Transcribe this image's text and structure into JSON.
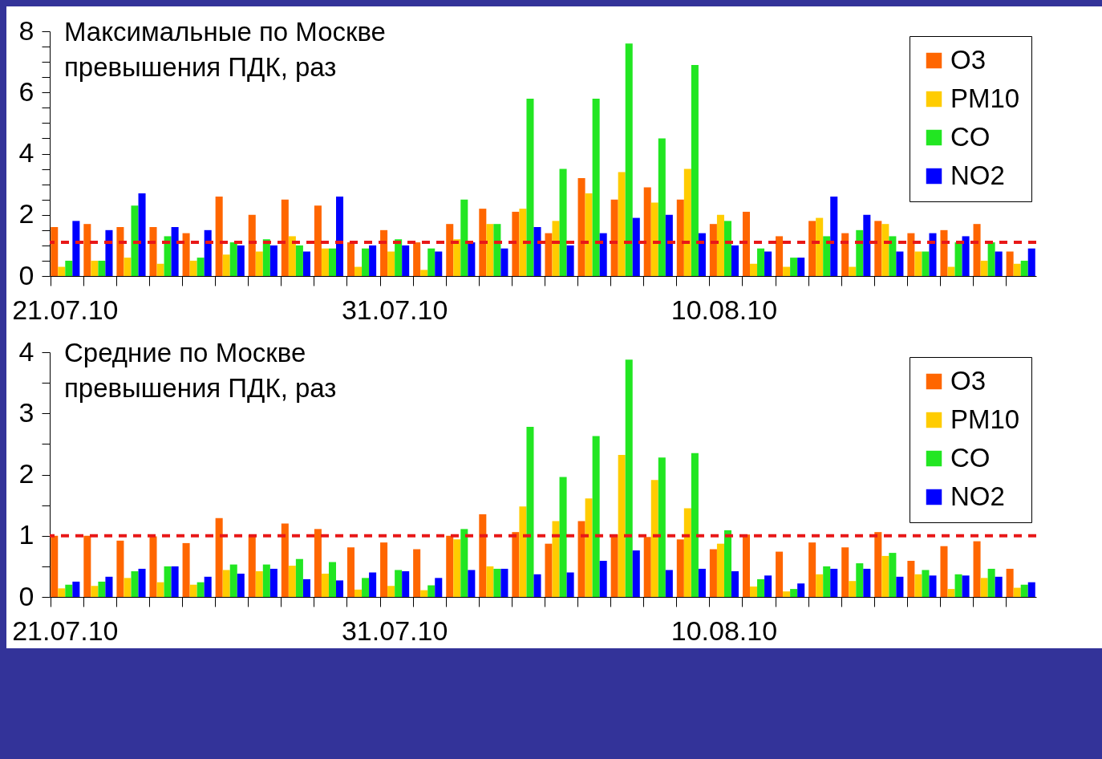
{
  "chart_data": [
    {
      "type": "bar",
      "title": "Максимальные по Москве\nпревышения ПДК, раз",
      "categories": [
        "21.07.10",
        null,
        null,
        null,
        null,
        null,
        null,
        null,
        null,
        null,
        "31.07.10",
        null,
        null,
        null,
        null,
        null,
        null,
        null,
        null,
        null,
        "10.08.10",
        null,
        null,
        null,
        null,
        null,
        null,
        null,
        null,
        null
      ],
      "series": [
        {
          "name": "O3",
          "color": "#ff6600",
          "values": [
            1.6,
            1.7,
            1.6,
            1.6,
            1.4,
            2.6,
            2.0,
            2.5,
            2.3,
            1.1,
            1.5,
            1.1,
            1.7,
            2.2,
            2.1,
            1.4,
            3.2,
            2.5,
            2.9,
            2.5,
            1.7,
            2.1,
            1.3,
            1.8,
            1.4,
            1.8,
            1.4,
            1.5,
            1.7,
            0.8
          ]
        },
        {
          "name": "PM10",
          "color": "#ffcc00",
          "values": [
            0.3,
            0.5,
            0.6,
            0.4,
            0.5,
            0.7,
            0.8,
            1.3,
            0.9,
            0.3,
            0.8,
            0.2,
            1.2,
            1.7,
            2.2,
            1.8,
            2.7,
            3.4,
            2.4,
            3.5,
            2.0,
            0.4,
            0.3,
            1.9,
            0.3,
            1.7,
            0.8,
            0.3,
            0.5,
            0.4
          ]
        },
        {
          "name": "CO",
          "color": "#22e622",
          "values": [
            0.5,
            0.5,
            2.3,
            1.3,
            0.6,
            1.1,
            1.2,
            1.0,
            0.9,
            0.9,
            1.2,
            0.9,
            2.5,
            1.7,
            5.8,
            3.5,
            5.8,
            7.6,
            4.5,
            6.9,
            1.8,
            0.9,
            0.6,
            1.3,
            1.5,
            1.3,
            0.8,
            1.1,
            1.1,
            0.5
          ]
        },
        {
          "name": "NO2",
          "color": "#0000ff",
          "values": [
            1.8,
            1.5,
            2.7,
            1.6,
            1.5,
            1.0,
            1.0,
            0.8,
            2.6,
            1.0,
            1.0,
            0.8,
            1.1,
            0.9,
            1.6,
            1.0,
            1.4,
            1.9,
            2.0,
            1.4,
            1.0,
            0.8,
            0.6,
            2.6,
            2.0,
            0.8,
            1.4,
            1.3,
            0.8,
            0.9
          ]
        }
      ],
      "ylim": [
        0,
        8
      ],
      "yticks": [
        0,
        {
          "value": 0.5,
          "label": null
        },
        {
          "value": 1,
          "label": null
        },
        {
          "value": 1.5,
          "label": null
        },
        2,
        {
          "value": 2.5,
          "label": null
        },
        {
          "value": 3,
          "label": null
        },
        {
          "value": 3.5,
          "label": null
        },
        4,
        {
          "value": 4.5,
          "label": null
        },
        {
          "value": 5,
          "label": null
        },
        {
          "value": 5.5,
          "label": null
        },
        6,
        {
          "value": 6.5,
          "label": null
        },
        {
          "value": 7,
          "label": null
        },
        {
          "value": 7.5,
          "label": null
        },
        8
      ],
      "ref_lines": [
        {
          "axis": "y",
          "value": 1.1,
          "color": "#e81818",
          "line_style": "dashed"
        }
      ],
      "legend": "top right"
    },
    {
      "type": "bar",
      "title": "Средние по Москве\nпревышения ПДК, раз",
      "categories": [
        "21.07.10",
        null,
        null,
        null,
        null,
        null,
        null,
        null,
        null,
        null,
        "31.07.10",
        null,
        null,
        null,
        null,
        null,
        null,
        null,
        null,
        null,
        "10.08.10",
        null,
        null,
        null,
        null,
        null,
        null,
        null,
        null,
        null
      ],
      "series": [
        {
          "name": "O3",
          "color": "#ff6600",
          "values": [
            1.0,
            1.0,
            0.92,
            0.99,
            0.88,
            1.29,
            1.01,
            1.2,
            1.11,
            0.81,
            0.89,
            0.78,
            1.0,
            1.35,
            1.06,
            0.87,
            1.24,
            1.02,
            0.98,
            0.94,
            0.78,
            1.02,
            0.74,
            0.89,
            0.81,
            1.06,
            0.59,
            0.83,
            0.91,
            0.46
          ]
        },
        {
          "name": "PM10",
          "color": "#ffcc00",
          "values": [
            0.14,
            0.18,
            0.31,
            0.24,
            0.2,
            0.44,
            0.42,
            0.51,
            0.38,
            0.12,
            0.18,
            0.11,
            0.94,
            0.5,
            1.48,
            1.24,
            1.61,
            2.32,
            1.91,
            1.45,
            0.87,
            0.17,
            0.09,
            0.37,
            0.26,
            0.67,
            0.37,
            0.13,
            0.31,
            0.15
          ]
        },
        {
          "name": "CO",
          "color": "#22e622",
          "values": [
            0.2,
            0.25,
            0.42,
            0.5,
            0.24,
            0.53,
            0.53,
            0.62,
            0.57,
            0.31,
            0.44,
            0.19,
            1.11,
            0.46,
            2.78,
            1.96,
            2.63,
            3.88,
            2.28,
            2.35,
            1.09,
            0.29,
            0.13,
            0.5,
            0.55,
            0.72,
            0.44,
            0.37,
            0.46,
            0.2
          ]
        },
        {
          "name": "NO2",
          "color": "#0000ff",
          "values": [
            0.25,
            0.33,
            0.46,
            0.5,
            0.33,
            0.38,
            0.46,
            0.29,
            0.27,
            0.4,
            0.42,
            0.31,
            0.44,
            0.46,
            0.37,
            0.4,
            0.59,
            0.76,
            0.44,
            0.46,
            0.42,
            0.35,
            0.22,
            0.46,
            0.46,
            0.33,
            0.35,
            0.35,
            0.33,
            0.24
          ]
        }
      ],
      "ylim": [
        0,
        4
      ],
      "yticks": [
        0,
        {
          "value": 0.5,
          "label": null
        },
        1,
        {
          "value": 1.5,
          "label": null
        },
        2,
        {
          "value": 2.5,
          "label": null
        },
        3,
        {
          "value": 3.5,
          "label": null
        },
        4
      ],
      "ref_lines": [
        {
          "axis": "y",
          "value": 1.0,
          "color": "#e81818",
          "line_style": "dashed"
        }
      ],
      "legend": "top right"
    }
  ]
}
